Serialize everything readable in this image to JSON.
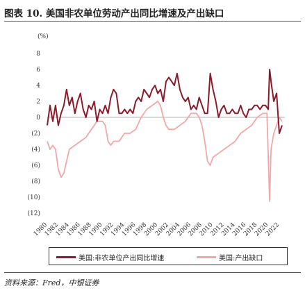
{
  "title": "图表 10. 美国非农单位劳动产出同比增速及产出缺口",
  "source": "资料来源：Fred，中银证券",
  "chart_data": {
    "type": "line",
    "unit_label": "(%)",
    "y_ticks": [
      "8",
      "6",
      "4",
      "2",
      "0",
      "(2)",
      "(4)",
      "(6)",
      "(8)",
      "(10)",
      "(12)"
    ],
    "y_tick_values": [
      8,
      6,
      4,
      2,
      0,
      -2,
      -4,
      -6,
      -8,
      -10,
      -12
    ],
    "ylim": [
      -12,
      8
    ],
    "xlim": [
      1980,
      2023
    ],
    "x_ticks": [
      "1980",
      "1982",
      "1984",
      "1986",
      "1988",
      "1990",
      "1992",
      "1994",
      "1996",
      "1998",
      "2000",
      "2002",
      "2004",
      "2006",
      "2008",
      "2010",
      "2012",
      "2014",
      "2016",
      "2018",
      "2020",
      "2022"
    ],
    "x_tick_values": [
      1980,
      1982,
      1984,
      1986,
      1988,
      1990,
      1992,
      1994,
      1996,
      1998,
      2000,
      2002,
      2004,
      2006,
      2008,
      2010,
      2012,
      2014,
      2016,
      2018,
      2020,
      2022
    ],
    "series": [
      {
        "name": "美国:非农单位产出同比增速",
        "color": "#8b1a2a",
        "x": [
          1980.0,
          1980.5,
          1981.0,
          1981.5,
          1982.0,
          1982.5,
          1983.0,
          1983.5,
          1984.0,
          1984.5,
          1985.0,
          1985.5,
          1986.0,
          1986.5,
          1987.0,
          1987.5,
          1988.0,
          1988.5,
          1989.0,
          1989.5,
          1990.0,
          1990.5,
          1991.0,
          1991.5,
          1992.0,
          1992.5,
          1993.0,
          1993.5,
          1994.0,
          1994.5,
          1995.0,
          1995.5,
          1996.0,
          1996.5,
          1997.0,
          1997.5,
          1998.0,
          1998.5,
          1999.0,
          1999.5,
          2000.0,
          2000.5,
          2001.0,
          2001.5,
          2002.0,
          2002.5,
          2003.0,
          2003.5,
          2004.0,
          2004.5,
          2005.0,
          2005.5,
          2006.0,
          2006.5,
          2007.0,
          2007.5,
          2008.0,
          2008.5,
          2009.0,
          2009.5,
          2010.0,
          2010.5,
          2011.0,
          2011.5,
          2012.0,
          2012.5,
          2013.0,
          2013.5,
          2014.0,
          2014.5,
          2015.0,
          2015.5,
          2016.0,
          2016.5,
          2017.0,
          2017.5,
          2018.0,
          2018.5,
          2019.0,
          2019.5,
          2020.0,
          2020.25,
          2020.5,
          2021.0,
          2021.5,
          2022.0,
          2022.5
        ],
        "values": [
          -1.0,
          1.5,
          -0.5,
          1.5,
          -1.0,
          0.5,
          1.5,
          3.5,
          1.5,
          2.5,
          0.5,
          2.0,
          3.0,
          1.0,
          0.0,
          1.5,
          1.0,
          2.0,
          -0.5,
          1.0,
          0.5,
          1.5,
          0.5,
          2.5,
          3.5,
          3.0,
          0.5,
          0.5,
          1.0,
          0.5,
          1.0,
          0.5,
          2.0,
          2.5,
          2.0,
          3.5,
          3.0,
          2.5,
          3.5,
          4.0,
          3.0,
          3.5,
          2.0,
          4.5,
          5.0,
          4.5,
          4.0,
          5.5,
          3.5,
          2.5,
          2.0,
          2.5,
          1.0,
          1.5,
          1.0,
          2.5,
          1.5,
          0.5,
          0.5,
          5.5,
          3.5,
          2.0,
          0.0,
          1.0,
          1.5,
          0.5,
          0.5,
          1.0,
          0.5,
          0.5,
          1.5,
          0.5,
          0.0,
          1.0,
          1.0,
          1.5,
          1.5,
          1.0,
          1.5,
          1.5,
          1.0,
          6.0,
          4.5,
          2.0,
          3.0,
          -2.0,
          -1.0
        ]
      },
      {
        "name": "美国:产出缺口",
        "color": "#f2a7a7",
        "x": [
          1980.0,
          1980.5,
          1981.0,
          1981.5,
          1982.0,
          1982.5,
          1983.0,
          1983.5,
          1984.0,
          1985.0,
          1986.0,
          1987.0,
          1988.0,
          1989.0,
          1990.0,
          1990.5,
          1991.0,
          1991.5,
          1992.0,
          1993.0,
          1994.0,
          1995.0,
          1996.0,
          1997.0,
          1998.0,
          1999.0,
          2000.0,
          2000.5,
          2001.0,
          2001.5,
          2002.0,
          2003.0,
          2004.0,
          2005.0,
          2006.0,
          2007.0,
          2007.5,
          2008.0,
          2008.5,
          2009.0,
          2009.5,
          2010.0,
          2011.0,
          2012.0,
          2013.0,
          2014.0,
          2015.0,
          2016.0,
          2017.0,
          2018.0,
          2019.0,
          2019.75,
          2020.25,
          2020.5,
          2021.0,
          2021.5,
          2022.0,
          2022.5
        ],
        "values": [
          -3.0,
          -4.0,
          -3.5,
          -4.0,
          -6.5,
          -7.5,
          -7.0,
          -5.5,
          -4.0,
          -3.5,
          -3.0,
          -2.5,
          -1.5,
          -0.5,
          -0.5,
          -1.0,
          -3.0,
          -3.5,
          -3.0,
          -3.0,
          -2.0,
          -2.0,
          -1.5,
          0.0,
          1.0,
          1.5,
          2.0,
          1.5,
          0.0,
          -1.0,
          -1.5,
          -1.5,
          -1.0,
          -0.5,
          0.5,
          0.5,
          0.0,
          -1.0,
          -3.0,
          -5.5,
          -6.0,
          -5.0,
          -4.5,
          -4.0,
          -3.5,
          -3.0,
          -2.0,
          -1.5,
          -1.0,
          0.0,
          0.5,
          0.5,
          -10.5,
          -4.0,
          -2.0,
          -1.0,
          0.0,
          -0.5
        ]
      }
    ]
  }
}
